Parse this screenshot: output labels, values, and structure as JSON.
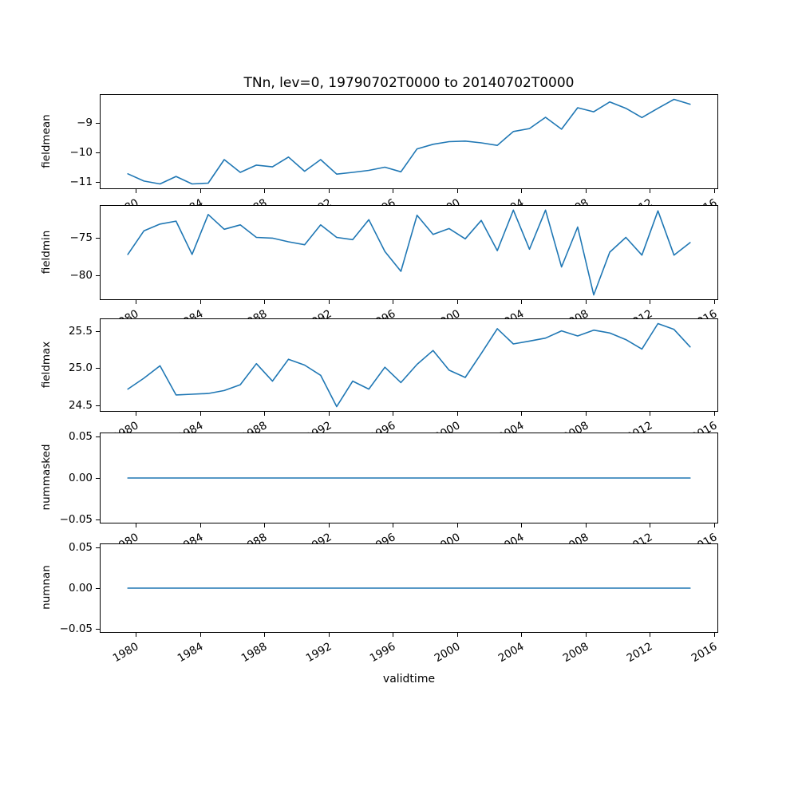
{
  "chart_data": {
    "type": "line",
    "title": "TNn, lev=0, 19790702T0000 to 20140702T0000",
    "xlabel": "validtime",
    "legend_position": "none",
    "grid": false,
    "line_color": "#1f77b4",
    "xlim": [
      1977.75,
      2016.25
    ],
    "x": [
      1979.5,
      1980.5,
      1981.5,
      1982.5,
      1983.5,
      1984.5,
      1985.5,
      1986.5,
      1987.5,
      1988.5,
      1989.5,
      1990.5,
      1991.5,
      1992.5,
      1993.5,
      1994.5,
      1995.5,
      1996.5,
      1997.5,
      1998.5,
      1999.5,
      2000.5,
      2001.5,
      2002.5,
      2003.5,
      2004.5,
      2005.5,
      2006.5,
      2007.5,
      2008.5,
      2009.5,
      2010.5,
      2011.5,
      2012.5,
      2013.5,
      2014.5
    ],
    "xticks": [
      {
        "v": 1980,
        "label": "1980"
      },
      {
        "v": 1984,
        "label": "1984"
      },
      {
        "v": 1988,
        "label": "1988"
      },
      {
        "v": 1992,
        "label": "1992"
      },
      {
        "v": 1996,
        "label": "1996"
      },
      {
        "v": 2000,
        "label": "2000"
      },
      {
        "v": 2004,
        "label": "2004"
      },
      {
        "v": 2008,
        "label": "2008"
      },
      {
        "v": 2012,
        "label": "2012"
      },
      {
        "v": 2016,
        "label": "2016"
      }
    ],
    "xtick_rotation_deg": 30,
    "subplots": [
      {
        "ylabel": "fieldmean",
        "ylim": [
          -11.25,
          -8.03
        ],
        "yticks": [
          {
            "v": -9,
            "label": "−9"
          },
          {
            "v": -10,
            "label": "−10"
          },
          {
            "v": -11,
            "label": "−11"
          }
        ],
        "values": [
          -10.75,
          -11.0,
          -11.1,
          -10.84,
          -11.1,
          -11.07,
          -10.26,
          -10.7,
          -10.45,
          -10.51,
          -10.17,
          -10.66,
          -10.26,
          -10.76,
          -10.7,
          -10.63,
          -10.52,
          -10.68,
          -9.89,
          -9.73,
          -9.64,
          -9.62,
          -9.68,
          -9.77,
          -9.29,
          -9.19,
          -8.8,
          -9.21,
          -8.47,
          -8.61,
          -8.27,
          -8.49,
          -8.81,
          -8.49,
          -8.18,
          -8.35
        ]
      },
      {
        "ylabel": "fieldmin",
        "ylim": [
          -83.28,
          -70.63
        ],
        "yticks": [
          {
            "v": -75,
            "label": "−75"
          },
          {
            "v": -80,
            "label": "−80"
          }
        ],
        "values": [
          -77.2,
          -74.0,
          -73.1,
          -72.7,
          -77.2,
          -71.8,
          -73.8,
          -73.2,
          -74.9,
          -75.0,
          -75.5,
          -75.9,
          -73.2,
          -74.9,
          -75.2,
          -72.5,
          -76.8,
          -79.5,
          -71.9,
          -74.5,
          -73.7,
          -75.1,
          -72.6,
          -76.7,
          -71.2,
          -76.5,
          -71.2,
          -78.9,
          -73.5,
          -82.7,
          -76.9,
          -74.9,
          -77.3,
          -71.3,
          -77.3,
          -75.6
        ]
      },
      {
        "ylabel": "fieldmax",
        "ylim": [
          24.41,
          25.67
        ],
        "yticks": [
          {
            "v": 25.5,
            "label": "25.5"
          },
          {
            "v": 25.0,
            "label": "25.0"
          },
          {
            "v": 24.5,
            "label": "24.5"
          }
        ],
        "values": [
          24.71,
          24.86,
          25.03,
          24.63,
          24.64,
          24.65,
          24.69,
          24.77,
          25.06,
          24.82,
          25.12,
          25.04,
          24.9,
          24.47,
          24.82,
          24.71,
          25.01,
          24.8,
          25.05,
          25.24,
          24.97,
          24.87,
          25.2,
          25.54,
          25.33,
          25.37,
          25.41,
          25.51,
          25.44,
          25.52,
          25.48,
          25.39,
          25.26,
          25.61,
          25.53,
          25.29
        ]
      },
      {
        "ylabel": "nummasked",
        "ylim": [
          -0.055,
          0.055
        ],
        "yticks": [
          {
            "v": 0.05,
            "label": "0.05"
          },
          {
            "v": 0.0,
            "label": "0.00"
          },
          {
            "v": -0.05,
            "label": "−0.05"
          }
        ],
        "values": [
          0,
          0,
          0,
          0,
          0,
          0,
          0,
          0,
          0,
          0,
          0,
          0,
          0,
          0,
          0,
          0,
          0,
          0,
          0,
          0,
          0,
          0,
          0,
          0,
          0,
          0,
          0,
          0,
          0,
          0,
          0,
          0,
          0,
          0,
          0,
          0
        ]
      },
      {
        "ylabel": "numnan",
        "ylim": [
          -0.055,
          0.055
        ],
        "yticks": [
          {
            "v": 0.05,
            "label": "0.05"
          },
          {
            "v": 0.0,
            "label": "0.00"
          },
          {
            "v": -0.05,
            "label": "−0.05"
          }
        ],
        "values": [
          0,
          0,
          0,
          0,
          0,
          0,
          0,
          0,
          0,
          0,
          0,
          0,
          0,
          0,
          0,
          0,
          0,
          0,
          0,
          0,
          0,
          0,
          0,
          0,
          0,
          0,
          0,
          0,
          0,
          0,
          0,
          0,
          0,
          0,
          0,
          0
        ]
      }
    ]
  }
}
